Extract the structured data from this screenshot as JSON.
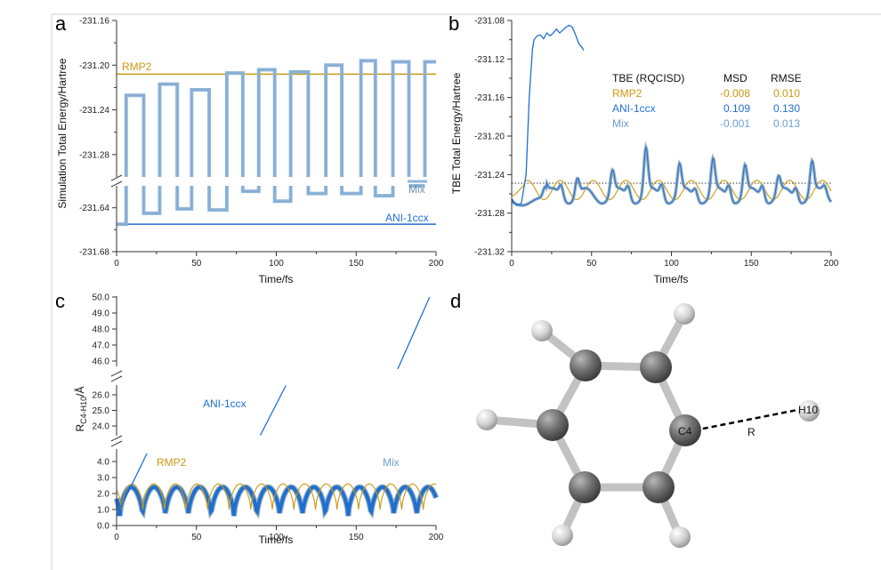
{
  "colors": {
    "rmp2": "#c9990e",
    "ani": "#1f6fd1",
    "mix": "#8fb6dc",
    "mixDark": "#6f8fa8",
    "atom": "#6a6a6a",
    "hydrogen": "#c8c8c8",
    "bond": "#c4c4c4"
  },
  "panels": {
    "a": {
      "letter": "a",
      "xlabel": "Time/fs",
      "ylabel": "Simulation Total Energy/Hartree",
      "labels": {
        "rmp2": "RMP2",
        "mix": "Mix",
        "ani": "ANI-1ccx"
      }
    },
    "b": {
      "letter": "b",
      "xlabel": "Time/fs",
      "ylabel": "TBE Total Energy/Hartree",
      "table": {
        "header": [
          "TBE (RQCISD)",
          "MSD",
          "RMSE"
        ],
        "rows": [
          {
            "name": "RMP2",
            "msd": "-0.008",
            "rmse": "0.010"
          },
          {
            "name": "ANI-1ccx",
            "msd": "0.109",
            "rmse": "0.130"
          },
          {
            "name": "Mix",
            "msd": "-0.001",
            "rmse": "0.013"
          }
        ]
      }
    },
    "c": {
      "letter": "c",
      "xlabel": "Time/fs",
      "ylabel_main": "R",
      "ylabel_sub": "C4-H10",
      "ylabel_unit": "/Å",
      "labels": {
        "ani": "ANI-1ccx",
        "rmp2": "RMP2",
        "mix": "Mix"
      }
    },
    "d": {
      "letter": "d",
      "labels": {
        "c4": "C4",
        "h10": "H10",
        "r": "R"
      }
    }
  },
  "chart_data": [
    {
      "panel": "a",
      "type": "line",
      "xlabel": "Time/fs",
      "ylabel": "Simulation Total Energy/Hartree",
      "xlim": [
        0,
        200
      ],
      "xticks": [
        "0",
        "50",
        "100",
        "150",
        "200"
      ],
      "y_axis_break": true,
      "ylim_upper": [
        -231.3,
        -231.16
      ],
      "ylim_lower": [
        -231.68,
        -231.62
      ],
      "yticks": [
        "-231.16",
        "-231.20",
        "-231.24",
        "-231.28",
        "-231.64",
        "-231.68"
      ],
      "series": [
        {
          "name": "RMP2",
          "x": [
            0,
            200
          ],
          "y": [
            -231.208,
            -231.208
          ]
        },
        {
          "name": "ANI-1ccx",
          "x": [
            0,
            200
          ],
          "y": [
            -231.655,
            -231.655
          ]
        },
        {
          "name": "Mix",
          "segments": [
            {
              "x0": 0,
              "x1": 6,
              "y": -231.655
            },
            {
              "x0": 6,
              "x1": 17,
              "y": -231.227
            },
            {
              "x0": 17,
              "x1": 27,
              "y": -231.645
            },
            {
              "x0": 27,
              "x1": 38,
              "y": -231.217
            },
            {
              "x0": 38,
              "x1": 47,
              "y": -231.641
            },
            {
              "x0": 47,
              "x1": 58,
              "y": -231.222
            },
            {
              "x0": 58,
              "x1": 69,
              "y": -231.642
            },
            {
              "x0": 69,
              "x1": 79,
              "y": -231.207
            },
            {
              "x0": 79,
              "x1": 89,
              "y": -231.625
            },
            {
              "x0": 89,
              "x1": 99,
              "y": -231.204
            },
            {
              "x0": 99,
              "x1": 109,
              "y": -231.634
            },
            {
              "x0": 109,
              "x1": 120,
              "y": -231.206
            },
            {
              "x0": 120,
              "x1": 131,
              "y": -231.627
            },
            {
              "x0": 131,
              "x1": 141,
              "y": -231.2
            },
            {
              "x0": 141,
              "x1": 153,
              "y": -231.627
            },
            {
              "x0": 153,
              "x1": 162,
              "y": -231.196
            },
            {
              "x0": 162,
              "x1": 173,
              "y": -231.629
            },
            {
              "x0": 173,
              "x1": 183,
              "y": -231.197
            },
            {
              "x0": 183,
              "x1": 193,
              "y": -231.62
            },
            {
              "x0": 193,
              "x1": 200,
              "y": -231.197
            }
          ]
        }
      ]
    },
    {
      "panel": "b",
      "type": "line",
      "xlabel": "Time/fs",
      "ylabel": "TBE Total Energy/Hartree",
      "xlim": [
        0,
        200
      ],
      "ylim": [
        -231.32,
        -231.08
      ],
      "xticks": [
        "0",
        "50",
        "100",
        "150",
        "200"
      ],
      "yticks": [
        "-231.08",
        "-231.12",
        "-231.16",
        "-231.20",
        "-231.24",
        "-231.28",
        "-231.32"
      ],
      "reference_line": {
        "style": "dotted",
        "y": -231.252
      },
      "series": [
        {
          "name": "RMP2",
          "pattern": "oscillation",
          "center": -231.256,
          "amplitude": 0.01,
          "period_fs": 20.5,
          "x_range": [
            0,
            200
          ]
        },
        {
          "name": "Mix",
          "pattern": "peaks",
          "base": -231.256,
          "x_range": [
            0,
            200
          ]
        },
        {
          "name": "ANI-1ccx",
          "x": [
            0,
            3,
            6,
            9,
            11,
            13,
            14,
            15,
            16,
            18,
            20,
            22,
            24,
            26,
            28,
            30,
            32,
            34,
            36,
            38,
            40,
            42,
            44,
            45
          ],
          "y": [
            -231.265,
            -231.272,
            -231.27,
            -231.24,
            -231.16,
            -231.11,
            -231.1,
            -231.098,
            -231.096,
            -231.095,
            -231.099,
            -231.093,
            -231.096,
            -231.093,
            -231.089,
            -231.093,
            -231.09,
            -231.087,
            -231.085,
            -231.087,
            -231.095,
            -231.104,
            -231.108,
            -231.111
          ]
        }
      ]
    },
    {
      "panel": "c",
      "type": "line",
      "xlabel": "Time/fs",
      "ylabel": "R(C4-H10)/Å",
      "xlim": [
        0,
        200
      ],
      "xticks": [
        "0",
        "50",
        "100",
        "150",
        "200"
      ],
      "y_axis_break": true,
      "ylim_segments": [
        [
          0,
          4.5
        ],
        [
          23.5,
          26.5
        ],
        [
          45.5,
          50
        ]
      ],
      "yticks": [
        "0.0",
        "1.0",
        "2.0",
        "3.0",
        "4.0",
        "24.0",
        "25.0",
        "26.0",
        "46.0",
        "47.0",
        "48.0",
        "49.0",
        "50.0"
      ],
      "series": [
        {
          "name": "RMP2",
          "pattern": "oscillation",
          "min": 1.0,
          "max": 2.6,
          "period_fs": 13.5,
          "x_range": [
            0,
            200
          ]
        },
        {
          "name": "Mix",
          "pattern": "oscillation",
          "min": 0.6,
          "max": 2.4,
          "period_fs": 14.3,
          "x_range": [
            0,
            200
          ]
        },
        {
          "name": "ANI-1ccx",
          "segments": [
            {
              "x": [
                0,
                19
              ],
              "y": [
                0.6,
                4.5
              ]
            },
            {
              "x": [
                90,
                106
              ],
              "y": [
                23.4,
                26.6
              ]
            },
            {
              "x": [
                176,
                196
              ],
              "y": [
                45.5,
                50.0
              ]
            }
          ]
        }
      ]
    }
  ]
}
